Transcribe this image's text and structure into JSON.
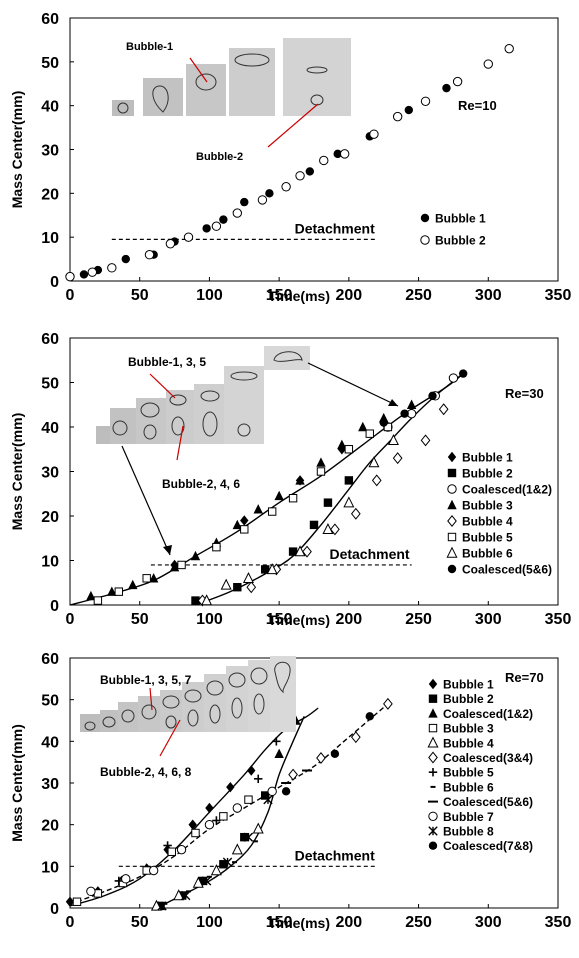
{
  "chart_data": [
    {
      "type": "scatter",
      "annotation": "Re=10",
      "xlabel": "Time(ms)",
      "ylabel": "Mass Center(mm)",
      "xlim": [
        0,
        350
      ],
      "ylim": [
        0,
        60
      ],
      "xticks": [
        0,
        50,
        100,
        150,
        200,
        250,
        300,
        350
      ],
      "yticks": [
        0,
        10,
        20,
        30,
        40,
        50,
        60
      ],
      "grid": false,
      "legend_position": "lower-right",
      "insets": {
        "label_top": "Bubble-1",
        "label_bottom": "Bubble-2"
      },
      "detachment": {
        "label": "Detachment",
        "y": 9.5,
        "x_range": [
          30,
          220
        ]
      },
      "series": [
        {
          "name": "Bubble 1",
          "marker": "circle-filled",
          "line": "none",
          "x": [
            10,
            20,
            40,
            60,
            75,
            98,
            110,
            125,
            143,
            172,
            192,
            215,
            243,
            270
          ],
          "y": [
            1.5,
            2.5,
            5,
            6,
            9,
            12,
            14,
            18,
            20,
            25,
            29,
            33,
            39,
            44
          ]
        },
        {
          "name": "Bubble 2",
          "marker": "circle-open",
          "line": "none",
          "x": [
            0,
            16,
            30,
            57,
            72,
            85,
            105,
            120,
            138,
            155,
            165,
            182,
            197,
            218,
            235,
            255,
            278,
            300,
            315
          ],
          "y": [
            1,
            2,
            3,
            6,
            8.5,
            10,
            12.5,
            15.5,
            18.5,
            21.5,
            24,
            27.5,
            29,
            33.5,
            37.5,
            41,
            45.5,
            49.5,
            53
          ]
        }
      ]
    },
    {
      "type": "scatter",
      "annotation": "Re=30",
      "xlabel": "Time(ms)",
      "ylabel": "Mass Center(mm)",
      "xlim": [
        0,
        350
      ],
      "ylim": [
        0,
        60
      ],
      "xticks": [
        0,
        50,
        100,
        150,
        200,
        250,
        300,
        350
      ],
      "yticks": [
        0,
        10,
        20,
        30,
        40,
        50,
        60
      ],
      "grid": false,
      "legend_position": "right",
      "insets": {
        "label_top": "Bubble-1, 3, 5",
        "label_bottom": "Bubble-2, 4, 6"
      },
      "detachment": {
        "label": "Detachment",
        "y": 9,
        "x_range": [
          58,
          245
        ]
      },
      "series": [
        {
          "name": "Bubble 1",
          "marker": "diamond-filled",
          "line": "none",
          "x": [
            75,
            125,
            165,
            195
          ],
          "y": [
            9,
            19,
            28,
            35
          ]
        },
        {
          "name": "Bubble 2",
          "marker": "square-filled",
          "line": "none",
          "x": [
            90,
            120,
            140,
            160,
            175,
            185,
            200
          ],
          "y": [
            1,
            4,
            8,
            12,
            18,
            23,
            28
          ]
        },
        {
          "name": "Coalesced(1&2)",
          "marker": "circle-open",
          "line": "none",
          "x": [
            228,
            245,
            262,
            275
          ],
          "y": [
            40,
            43,
            47,
            51
          ]
        },
        {
          "name": "Bubble 3",
          "marker": "triangle-filled",
          "line": "none",
          "x": [
            15,
            30,
            45,
            60,
            75,
            90,
            105,
            120,
            135,
            150,
            165,
            180,
            195,
            210,
            225,
            245
          ],
          "y": [
            2,
            3,
            4.5,
            6,
            8.5,
            11,
            14,
            18,
            21.5,
            24.5,
            28,
            32,
            36,
            40,
            42,
            45
          ]
        },
        {
          "name": "Bubble 4",
          "marker": "diamond-open",
          "line": "none",
          "x": [
            95,
            130,
            148,
            170,
            190,
            205,
            220,
            235,
            255,
            268
          ],
          "y": [
            1,
            4,
            8,
            12,
            17,
            20.5,
            28,
            33,
            37,
            44
          ]
        },
        {
          "name": "Bubble 5",
          "marker": "square-open",
          "line": "none",
          "x": [
            20,
            35,
            55,
            80,
            105,
            125,
            145,
            160,
            180,
            200,
            215,
            228
          ],
          "y": [
            1,
            3,
            6,
            9,
            13,
            17,
            21,
            24,
            30,
            35,
            38.5,
            40
          ]
        },
        {
          "name": "Bubble 6",
          "marker": "triangle-open",
          "line": "none",
          "x": [
            98,
            112,
            128,
            145,
            165,
            185,
            200,
            218,
            232
          ],
          "y": [
            1,
            4.5,
            6,
            8,
            12,
            17,
            23,
            32,
            37
          ]
        },
        {
          "name": "Coalesced(5&6)",
          "marker": "circle-filled",
          "line": "none",
          "x": [
            225,
            240,
            260,
            282
          ],
          "y": [
            41,
            43,
            47,
            52
          ]
        }
      ],
      "fit_curves": [
        {
          "style": "solid",
          "x": [
            0,
            30,
            60,
            90,
            120,
            150,
            180,
            210,
            240,
            270,
            282
          ],
          "y": [
            0,
            2.5,
            5.5,
            11,
            16.5,
            23,
            29,
            36,
            43,
            49,
            52
          ]
        },
        {
          "style": "solid",
          "x": [
            90,
            115,
            140,
            160,
            180,
            200,
            215,
            230,
            245,
            262,
            282
          ],
          "y": [
            0,
            3,
            7,
            11,
            18,
            26,
            32,
            37,
            42,
            47,
            52
          ]
        }
      ]
    },
    {
      "type": "scatter",
      "annotation": "Re=70",
      "xlabel": "Time(ms)",
      "ylabel": "Mass Center(mm)",
      "xlim": [
        0,
        350
      ],
      "ylim": [
        0,
        60
      ],
      "xticks": [
        0,
        50,
        100,
        150,
        200,
        250,
        300,
        350
      ],
      "yticks": [
        0,
        10,
        20,
        30,
        40,
        50,
        60
      ],
      "grid": false,
      "legend_position": "right",
      "insets": {
        "label_top": "Bubble-1, 3, 5, 7",
        "label_bottom": "Bubble-2, 4, 6, 8"
      },
      "detachment": {
        "label": "Detachment",
        "y": 10,
        "x_range": [
          35,
          220
        ]
      },
      "series": [
        {
          "name": "Bubble 1",
          "marker": "diamond-filled",
          "line": "none",
          "x": [
            0,
            20,
            37,
            55,
            70,
            88,
            100,
            115,
            130
          ],
          "y": [
            1.5,
            4,
            6.5,
            9.5,
            14,
            20,
            24,
            29,
            33
          ]
        },
        {
          "name": "Bubble 2",
          "marker": "square-filled",
          "line": "none",
          "x": [
            65,
            80,
            95,
            110,
            125,
            140
          ],
          "y": [
            0.5,
            3,
            6.5,
            10.5,
            17,
            27
          ]
        },
        {
          "name": "Coalesced(1&2)",
          "marker": "triangle-filled",
          "line": "none",
          "x": [
            150,
            162
          ],
          "y": [
            37,
            45
          ]
        },
        {
          "name": "Bubble 3",
          "marker": "square-open",
          "line": "none",
          "x": [
            5,
            20,
            38,
            55,
            73,
            90,
            110,
            128
          ],
          "y": [
            1.5,
            3.5,
            6,
            9,
            13.5,
            18,
            22,
            26
          ]
        },
        {
          "name": "Bubble 4",
          "marker": "triangle-open",
          "line": "none",
          "x": [
            62,
            78,
            92,
            105,
            120,
            135
          ],
          "y": [
            0.5,
            3,
            6,
            9,
            14,
            19
          ]
        },
        {
          "name": "Coalesced(3&4)",
          "marker": "diamond-open",
          "line": "none",
          "x": [
            160,
            180,
            205,
            228
          ],
          "y": [
            32,
            36,
            41,
            49
          ]
        },
        {
          "name": "Bubble 5",
          "marker": "plus",
          "line": "none",
          "x": [
            35,
            70,
            105,
            135,
            148
          ],
          "y": [
            6.5,
            15,
            21,
            31,
            40
          ]
        },
        {
          "name": "Bubble 6",
          "marker": "dash",
          "line": "none",
          "x": [
            68,
            85,
            100,
            118,
            133
          ],
          "y": [
            1,
            4,
            7.5,
            11,
            16
          ]
        },
        {
          "name": "Coalesced(5&6)",
          "marker": "long-dash",
          "line": "none",
          "x": [
            155,
            170
          ],
          "y": [
            30,
            33
          ]
        },
        {
          "name": "Bubble 7",
          "marker": "circle-open",
          "line": "none",
          "x": [
            15,
            40,
            60,
            80,
            100,
            120,
            145
          ],
          "y": [
            4,
            7,
            9,
            14,
            20,
            24,
            28
          ]
        },
        {
          "name": "Bubble 8",
          "marker": "asterisk",
          "line": "none",
          "x": [
            66,
            83,
            98,
            113,
            128,
            142
          ],
          "y": [
            0.5,
            3,
            6.5,
            11,
            17,
            26
          ]
        },
        {
          "name": "Coalesced(7&8)",
          "marker": "circle-filled",
          "line": "none",
          "x": [
            155,
            190,
            215
          ],
          "y": [
            28,
            37,
            46
          ]
        }
      ],
      "fit_curves": [
        {
          "style": "solid",
          "x": [
            0,
            25,
            50,
            75,
            100,
            125,
            140,
            155,
            170,
            178
          ],
          "y": [
            0.5,
            3,
            7,
            14,
            23,
            32,
            38,
            43,
            46,
            48
          ]
        },
        {
          "style": "solid",
          "x": [
            62,
            80,
            100,
            115,
            130,
            142,
            150,
            160,
            168
          ],
          "y": [
            0,
            3,
            6.5,
            10,
            15,
            23,
            32,
            40,
            46
          ]
        },
        {
          "style": "dashed",
          "x": [
            5,
            25,
            50,
            75,
            100,
            125,
            150,
            175,
            200,
            228
          ],
          "y": [
            1.5,
            4,
            7.5,
            12.5,
            19,
            24,
            29,
            34,
            41,
            49
          ]
        }
      ]
    }
  ]
}
